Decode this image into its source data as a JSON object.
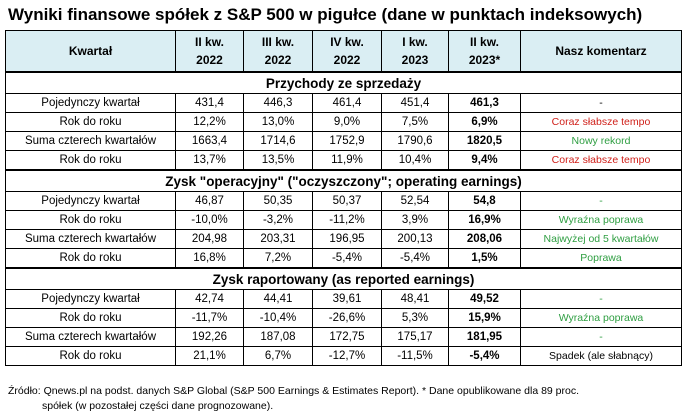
{
  "title": "Wyniki finansowe spółek z S&P 500 w pigułce (dane w punktach indeksowych)",
  "header": {
    "kwartal": "Kwartał",
    "cols": [
      {
        "l1": "II kw.",
        "l2": "2022"
      },
      {
        "l1": "III kw.",
        "l2": "2022"
      },
      {
        "l1": "IV kw.",
        "l2": "2022"
      },
      {
        "l1": "I kw.",
        "l2": "2023"
      },
      {
        "l1": "II kw.",
        "l2": "2023*"
      }
    ],
    "comment": "Nasz komentarz"
  },
  "sections": [
    {
      "title": "Przychody ze sprzedaży",
      "rows": [
        {
          "label": "Pojedynczy kwartał",
          "v": [
            "431,4",
            "446,3",
            "461,4",
            "451,4",
            "461,3"
          ],
          "comment": "-",
          "comment_color": "black"
        },
        {
          "label": "Rok do roku",
          "v": [
            "12,2%",
            "13,0%",
            "9,0%",
            "7,5%",
            "6,9%"
          ],
          "comment": "Coraz słabsze tempo",
          "comment_color": "red"
        },
        {
          "label": "Suma czterech kwartałów",
          "v": [
            "1663,4",
            "1714,6",
            "1752,9",
            "1790,6",
            "1820,5"
          ],
          "comment": "Nowy rekord",
          "comment_color": "green"
        },
        {
          "label": "Rok do roku",
          "v": [
            "13,7%",
            "13,5%",
            "11,9%",
            "10,4%",
            "9,4%"
          ],
          "comment": "Coraz słabsze tempo",
          "comment_color": "red"
        }
      ]
    },
    {
      "title": "Zysk \"operacyjny\" (\"oczyszczony\"; operating earnings)",
      "rows": [
        {
          "label": "Pojedynczy kwartał",
          "v": [
            "46,87",
            "50,35",
            "50,37",
            "52,54",
            "54,8"
          ],
          "comment": "-",
          "comment_color": "green"
        },
        {
          "label": "Rok do roku",
          "v": [
            "-10,0%",
            "-3,2%",
            "-11,2%",
            "3,9%",
            "16,9%"
          ],
          "comment": "Wyraźna poprawa",
          "comment_color": "green"
        },
        {
          "label": "Suma czterech kwartałów",
          "v": [
            "204,98",
            "203,31",
            "196,95",
            "200,13",
            "208,06"
          ],
          "comment": "Najwyżej od 5 kwartałów",
          "comment_color": "green"
        },
        {
          "label": "Rok do roku",
          "v": [
            "16,8%",
            "7,2%",
            "-5,4%",
            "-5,4%",
            "1,5%"
          ],
          "comment": "Poprawa",
          "comment_color": "green"
        }
      ]
    },
    {
      "title": "Zysk raportowany (as reported earnings)",
      "rows": [
        {
          "label": "Pojedynczy kwartał",
          "v": [
            "42,74",
            "44,41",
            "39,61",
            "48,41",
            "49,52"
          ],
          "comment": "-",
          "comment_color": "green"
        },
        {
          "label": "Rok do roku",
          "v": [
            "-11,7%",
            "-10,4%",
            "-26,6%",
            "5,3%",
            "15,9%"
          ],
          "comment": "Wyraźna poprawa",
          "comment_color": "green"
        },
        {
          "label": "Suma czterech kwartałów",
          "v": [
            "192,26",
            "187,08",
            "172,75",
            "175,17",
            "181,95"
          ],
          "comment": "-",
          "comment_color": "green"
        },
        {
          "label": "Rok do roku",
          "v": [
            "21,1%",
            "6,7%",
            "-12,7%",
            "-11,5%",
            "-5,4%"
          ],
          "comment": "Spadek (ale słabnący)",
          "comment_color": "black"
        }
      ]
    }
  ],
  "footer": {
    "line1": "Źródło: Qnews.pl na podst. danych S&P Global (S&P 500 Earnings & Estimates Report). * Dane opublikowane dla 89 proc.",
    "line2": "spółek (w pozostałej części dane prognozowane)."
  }
}
